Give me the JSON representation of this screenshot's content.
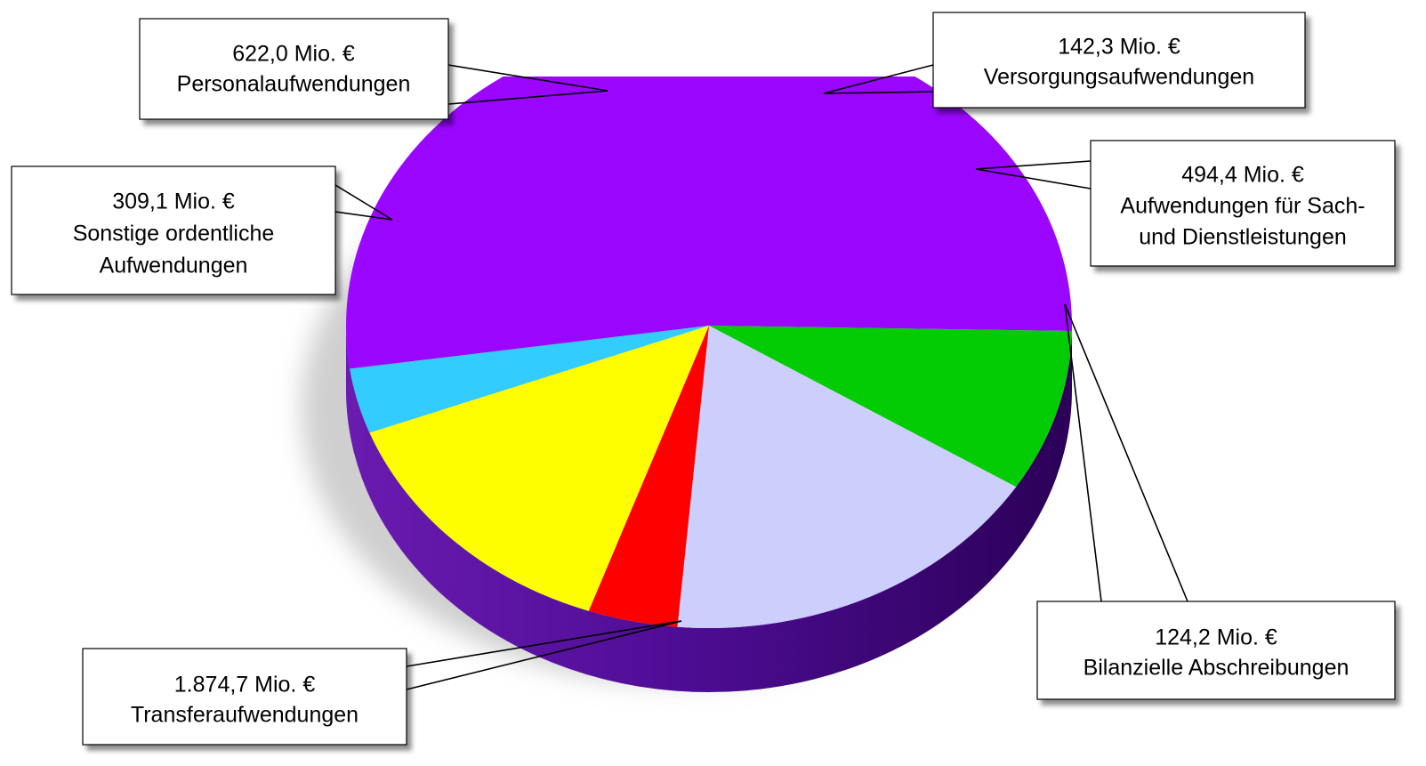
{
  "chart_data": {
    "type": "pie",
    "title": "",
    "unit": "Mio. €",
    "slices": [
      {
        "name": "Transferaufwendungen",
        "value": 1874.7,
        "value_label": "1.874,7 Mio. €",
        "color": "#9a06ff"
      },
      {
        "name": "Sonstige ordentliche Aufwendungen",
        "value": 309.1,
        "value_label": "309,1 Mio. €",
        "color": "#04cc04"
      },
      {
        "name": "Personalaufwendungen",
        "value": 622.0,
        "value_label": "622,0 Mio. €",
        "color": "#cccffc"
      },
      {
        "name": "Versorgungsaufwendungen",
        "value": 142.3,
        "value_label": "142,3 Mio. €",
        "color": "#fe0000"
      },
      {
        "name": "Aufwendungen für Sach- und Dienstleistungen",
        "value": 494.4,
        "value_label": "494,4 Mio. €",
        "color": "#fefe00"
      },
      {
        "name": "Bilanzielle Abschreibungen",
        "value": 124.2,
        "value_label": "124,2 Mio. €",
        "color": "#33ccfe"
      }
    ],
    "labels": [
      {
        "lines": [
          "622,0 Mio. €",
          "Personalaufwendungen"
        ]
      },
      {
        "lines": [
          "142,3 Mio. €",
          "Versorgungsaufwendungen"
        ]
      },
      {
        "lines": [
          "309,1 Mio. €",
          "Sonstige ordentliche",
          "Aufwendungen"
        ]
      },
      {
        "lines": [
          "494,4 Mio. €",
          "Aufwendungen für Sach-",
          "und Dienstleistungen"
        ]
      },
      {
        "lines": [
          "124,2 Mio. €",
          "Bilanzielle Abschreibungen"
        ]
      },
      {
        "lines": [
          "1.874,7 Mio. €",
          "Transferaufwendungen"
        ]
      }
    ],
    "depth_color_main": "#4b0a8a",
    "legend": "none"
  }
}
